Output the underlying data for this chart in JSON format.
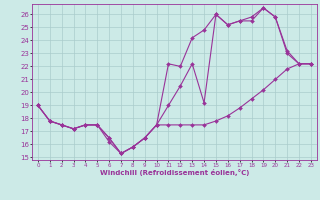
{
  "xlabel": "Windchill (Refroidissement éolien,°C)",
  "bg_color": "#cceae7",
  "line_color": "#993399",
  "grid_color": "#aacccc",
  "xlim": [
    -0.5,
    23.5
  ],
  "ylim": [
    14.8,
    26.8
  ],
  "yticks": [
    15,
    16,
    17,
    18,
    19,
    20,
    21,
    22,
    23,
    24,
    25,
    26
  ],
  "xticks": [
    0,
    1,
    2,
    3,
    4,
    5,
    6,
    7,
    8,
    9,
    10,
    11,
    12,
    13,
    14,
    15,
    16,
    17,
    18,
    19,
    20,
    21,
    22,
    23
  ],
  "series1_x": [
    0,
    1,
    2,
    3,
    4,
    5,
    6,
    7,
    8,
    9,
    10,
    11,
    12,
    13,
    14,
    15,
    16,
    17,
    18,
    19,
    20,
    21,
    22,
    23
  ],
  "series1_y": [
    19.0,
    17.8,
    17.5,
    17.2,
    17.5,
    17.5,
    16.5,
    15.3,
    15.8,
    16.5,
    17.5,
    17.5,
    17.5,
    17.5,
    17.5,
    17.8,
    18.2,
    18.8,
    19.5,
    20.2,
    21.0,
    21.8,
    22.2,
    22.2
  ],
  "series2_x": [
    0,
    1,
    2,
    3,
    4,
    5,
    6,
    7,
    8,
    9,
    10,
    11,
    12,
    13,
    14,
    15,
    16,
    17,
    18,
    19,
    20,
    21,
    22,
    23
  ],
  "series2_y": [
    19.0,
    17.8,
    17.5,
    17.2,
    17.5,
    17.5,
    16.5,
    15.3,
    15.8,
    16.5,
    17.5,
    19.0,
    20.5,
    22.2,
    19.2,
    26.0,
    25.2,
    25.5,
    25.8,
    26.5,
    25.8,
    23.0,
    22.2,
    22.2
  ],
  "series3_x": [
    0,
    1,
    2,
    3,
    4,
    5,
    6,
    7,
    8,
    9,
    10,
    11,
    12,
    13,
    14,
    15,
    16,
    17,
    18,
    19,
    20,
    21,
    22,
    23
  ],
  "series3_y": [
    19.0,
    17.8,
    17.5,
    17.2,
    17.5,
    17.5,
    16.2,
    15.3,
    15.8,
    16.5,
    17.5,
    22.2,
    22.0,
    24.2,
    24.8,
    26.0,
    25.2,
    25.5,
    25.5,
    26.5,
    25.8,
    23.2,
    22.2,
    22.2
  ]
}
